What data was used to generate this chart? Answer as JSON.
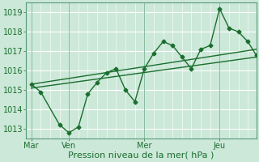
{
  "title": "",
  "xlabel": "Pression niveau de la mer( hPa )",
  "ylabel": "",
  "bg_color": "#cce8d8",
  "plot_bg_color": "#cce8d8",
  "grid_color": "#ffffff",
  "line_color": "#1a6e2e",
  "yticks": [
    1013,
    1014,
    1015,
    1016,
    1017,
    1018,
    1019
  ],
  "ylim": [
    1012.5,
    1019.5
  ],
  "xtick_labels": [
    "Mar",
    "Ven",
    "Mer",
    "Jeu"
  ],
  "xtick_positions": [
    0,
    36,
    108,
    180
  ],
  "xlim": [
    -5,
    215
  ],
  "series1_x": [
    0,
    9,
    27,
    36,
    45,
    54,
    63,
    72,
    81,
    90,
    99,
    108,
    117,
    126,
    135,
    144,
    153,
    162,
    171,
    180,
    189,
    198,
    207,
    215
  ],
  "series1_y": [
    1015.3,
    1014.9,
    1013.2,
    1012.8,
    1013.1,
    1014.8,
    1015.4,
    1015.9,
    1016.1,
    1015.0,
    1014.4,
    1016.1,
    1016.9,
    1017.5,
    1017.3,
    1016.7,
    1016.1,
    1017.1,
    1017.3,
    1019.2,
    1018.2,
    1018.0,
    1017.5,
    1016.8
  ],
  "trend1_x": [
    0,
    215
  ],
  "trend1_y": [
    1015.1,
    1016.7
  ],
  "trend2_x": [
    0,
    215
  ],
  "trend2_y": [
    1015.3,
    1017.1
  ],
  "vline_positions": [
    0,
    36,
    108,
    180
  ],
  "xlabel_fontsize": 8,
  "tick_labelsize": 7
}
